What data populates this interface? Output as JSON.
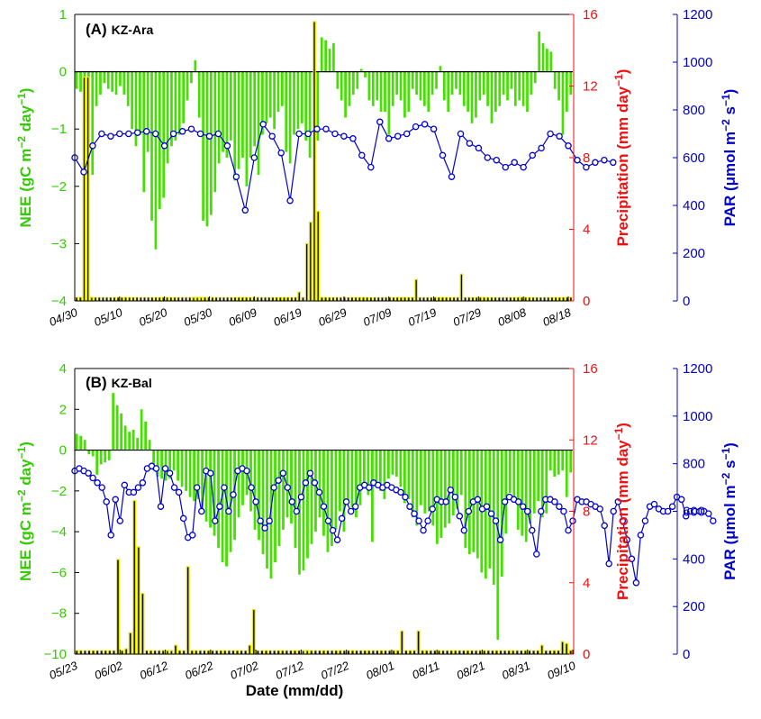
{
  "colors": {
    "nee": "#44e000",
    "precip_fill": "#111111",
    "precip_edge": "#e8e800",
    "par": "#0000cc",
    "par_marker_fill": "#ffffff",
    "precip_axis": "#ee1111",
    "nee_axis": "#33cc00",
    "zero_line": "#000000"
  },
  "xlabel": "Date (mm/dd)",
  "chart_data": [
    {
      "type": "bar",
      "panel": "(A)",
      "site": "KZ-Ara",
      "start_date": "04/30",
      "date_ticks": [
        "04/30",
        "05/10",
        "05/20",
        "05/30",
        "06/09",
        "06/19",
        "06/29",
        "07/09",
        "07/19",
        "07/29",
        "08/08",
        "08/18"
      ],
      "left_axis": {
        "label": "NEE (gC m",
        "label_sup1": "−2",
        "label_mid": " day",
        "label_sup2": "−1",
        "label_end": ")",
        "ylim": [
          -4,
          1
        ],
        "ticks": [
          "−4",
          "−3",
          "−2",
          "−1",
          "0",
          "1"
        ]
      },
      "mid_axis": {
        "label": "Precipitation (mm day",
        "label_sup": "−1",
        "label_end": ")",
        "ylim": [
          0,
          16
        ],
        "ticks": [
          "0",
          "4",
          "8",
          "12",
          "16"
        ]
      },
      "right_axis": {
        "label": "PAR (μmol m",
        "label_sup1": "−2",
        "label_mid": " s",
        "label_sup2": "−1",
        "label_end": ")",
        "ylim": [
          0,
          1200
        ],
        "ticks": [
          "0",
          "200",
          "400",
          "600",
          "800",
          "1000",
          "1200"
        ]
      },
      "series": [
        {
          "name": "NEE",
          "kind": "bar",
          "values": [
            -0.3,
            -0.35,
            -0.9,
            -1.3,
            -1.8,
            -0.6,
            -0.4,
            -0.2,
            -0.3,
            -0.35,
            -0.4,
            -0.25,
            -0.4,
            -0.6,
            -1.0,
            -1.3,
            -1.1,
            -2.1,
            -1.4,
            -2.6,
            -3.1,
            -2.4,
            -2.2,
            -1.6,
            -1.3,
            -1.2,
            -1.1,
            -0.9,
            -0.5,
            -0.2,
            0.2,
            -0.8,
            -2.6,
            -2.7,
            -2.5,
            -2.1,
            -1.6,
            -1.4,
            -1.5,
            -1.2,
            -1.9,
            -1.7,
            -1.5,
            -2.0,
            -1.5,
            -1.3,
            -1.8,
            -1.1,
            -0.9,
            -0.8,
            -1.0,
            -0.7,
            -0.6,
            -1.4,
            -1.6,
            -1.1,
            -1.0,
            -0.9,
            -1.2,
            -1.5,
            -0.2,
            -1.2,
            0.6,
            0.55,
            0.4,
            0.5,
            -0.3,
            -0.5,
            -0.8,
            -0.6,
            -0.4,
            -0.3,
            0.05,
            -0.1,
            -0.5,
            -0.6,
            -0.5,
            -0.7,
            -0.7,
            -1.1,
            -0.6,
            -0.4,
            -0.5,
            -0.8,
            -0.7,
            -0.3,
            -0.4,
            -0.5,
            -0.6,
            -0.7,
            -0.4,
            -0.3,
            0.1,
            -0.5,
            -0.7,
            -0.4,
            -0.3,
            -0.4,
            -0.6,
            -0.7,
            -0.9,
            -0.8,
            -0.5,
            -0.4,
            -0.6,
            -0.9,
            -0.7,
            -0.6,
            -0.4,
            -0.5,
            -0.3,
            -0.6,
            -0.5,
            -0.6,
            -0.7,
            -0.4,
            -0.2,
            0.7,
            0.5,
            0.4,
            0.35,
            -0.3,
            -0.5,
            -1.1,
            -0.7,
            -0.4
          ]
        },
        {
          "name": "Precipitation",
          "kind": "bar",
          "values": [
            0,
            0,
            12.5,
            12.5,
            0.1,
            0,
            0,
            0,
            0,
            0,
            0,
            0,
            0,
            0,
            0,
            0,
            0,
            0,
            0,
            0,
            0,
            0,
            0,
            0,
            0,
            0,
            0,
            0,
            0,
            0,
            0,
            0.1,
            0.1,
            0.1,
            0,
            0,
            0,
            0,
            0,
            0,
            0,
            0,
            0,
            0,
            0,
            0,
            0,
            0,
            0,
            0,
            0,
            0,
            0,
            0,
            0,
            0,
            0,
            0,
            0,
            0.5,
            0,
            3.2,
            4.4,
            15.6,
            5.0,
            0,
            0,
            0,
            0,
            0,
            0,
            0,
            0,
            0,
            0,
            0,
            0,
            0,
            0,
            0,
            0,
            0,
            0,
            0,
            0,
            0,
            0,
            0,
            0,
            0,
            1.2,
            0,
            0,
            0,
            0,
            0,
            0,
            0,
            0,
            0,
            0,
            0,
            1.5,
            0,
            0,
            0,
            0,
            0,
            0,
            0,
            0,
            0,
            0,
            0,
            0,
            0,
            0,
            0,
            0,
            0,
            0,
            0,
            0,
            0,
            0,
            0,
            0,
            0,
            0,
            0,
            0,
            0
          ]
        },
        {
          "name": "PAR",
          "kind": "line",
          "day_offsets": [
            0,
            2,
            4,
            6,
            8,
            10,
            12,
            14,
            16,
            18,
            20,
            22,
            24,
            26,
            28,
            30,
            32,
            34,
            36,
            38,
            40,
            42,
            44,
            46,
            48,
            50,
            52,
            54,
            56,
            58,
            60,
            62,
            64,
            66,
            68,
            70,
            72,
            74,
            76,
            78,
            80,
            82,
            84,
            86,
            88,
            90,
            92,
            94,
            96,
            98,
            100,
            102,
            104,
            106,
            108,
            110,
            112,
            114,
            116,
            118,
            120
          ],
          "values": [
            600,
            540,
            650,
            700,
            690,
            700,
            700,
            705,
            710,
            700,
            650,
            700,
            710,
            720,
            700,
            690,
            700,
            650,
            520,
            380,
            600,
            740,
            690,
            620,
            420,
            700,
            700,
            720,
            720,
            700,
            690,
            680,
            610,
            560,
            750,
            680,
            690,
            700,
            730,
            740,
            720,
            610,
            520,
            700,
            660,
            640,
            600,
            590,
            560,
            580,
            560,
            610,
            640,
            700,
            690,
            650,
            590,
            560,
            580,
            590,
            580
          ]
        }
      ]
    },
    {
      "type": "bar",
      "panel": "(B)",
      "site": "KZ-Bal",
      "start_date": "05/23",
      "date_ticks": [
        "05/23",
        "06/02",
        "06/12",
        "06/22",
        "07/02",
        "07/12",
        "07/22",
        "08/01",
        "08/11",
        "08/21",
        "08/31",
        "09/10"
      ],
      "left_axis": {
        "label": "NEE (gC m",
        "label_sup1": "−2",
        "label_mid": " day",
        "label_sup2": "−1",
        "label_end": ")",
        "ylim": [
          -10,
          4
        ],
        "ticks": [
          "−10",
          "−8",
          "−6",
          "−4",
          "−2",
          "0",
          "2",
          "4"
        ]
      },
      "mid_axis": {
        "label": "Precipitation (mm day",
        "label_sup": "−1",
        "label_end": ")",
        "ylim": [
          0,
          16
        ],
        "ticks": [
          "0",
          "4",
          "8",
          "12",
          "16"
        ]
      },
      "right_axis": {
        "label": "PAR (μmol m",
        "label_sup1": "−2",
        "label_mid": " s",
        "label_sup2": "−1",
        "label_end": ")",
        "ylim": [
          0,
          1200
        ],
        "ticks": [
          "0",
          "200",
          "400",
          "600",
          "800",
          "1000",
          "1200"
        ]
      },
      "series": [
        {
          "name": "NEE",
          "kind": "bar",
          "values": [
            0.8,
            0.7,
            0.5,
            -0.2,
            -0.3,
            -1.2,
            -0.7,
            -0.6,
            -0.5,
            2.8,
            2.2,
            1.8,
            1.2,
            0.9,
            1.0,
            0.6,
            2.0,
            1.4,
            0.5,
            -1.0,
            -1.3,
            -1.4,
            -1.5,
            -1.4,
            -1.0,
            -1.5,
            -1.8,
            -2.0,
            -2.3,
            -2.5,
            -2.4,
            -3.1,
            -3.5,
            -3.8,
            -4.2,
            -4.8,
            -5.5,
            -5.7,
            -5.0,
            -4.4,
            -3.3,
            -2.7,
            -2.2,
            -3.0,
            -3.9,
            -4.4,
            -5.1,
            -5.8,
            -6.3,
            -5.5,
            -4.7,
            -3.9,
            -3.3,
            -3.6,
            -4.8,
            -6.1,
            -5.9,
            -5.3,
            -4.6,
            -4.0,
            -3.3,
            -4.2,
            -5.0,
            -4.7,
            -3.9,
            -3.0,
            -4.0,
            -2.5,
            -2.8,
            -3.3,
            -2.7,
            -1.9,
            -2.2,
            -4.5,
            -1.8,
            -2.0,
            -2.4,
            -1.4,
            -1.2,
            -1.3,
            -1.8,
            -2.6,
            -2.4,
            -3.3,
            -3.7,
            -2.7,
            -3.1,
            -3.0,
            -3.7,
            -4.6,
            -4.3,
            -3.8,
            -3.6,
            -3.2,
            -2.9,
            -2.2,
            -4.8,
            -5.1,
            -5.0,
            -5.3,
            -6.0,
            -6.3,
            -5.8,
            -6.6,
            -9.3,
            -6.2,
            -4.1,
            -2.1,
            -2.3,
            -3.9,
            -4.2,
            -4.5,
            -3.6,
            -3.1,
            -2.5,
            -3.3,
            -3.1,
            -1.0,
            -1.3,
            -1.2,
            -1.0,
            -2.3,
            -1.1
          ]
        },
        {
          "name": "Precipitation",
          "kind": "bar",
          "values": [
            0,
            0,
            0,
            0,
            0,
            0,
            0,
            0,
            0,
            0,
            5.3,
            0,
            0.3,
            1.2,
            8.6,
            6.0,
            3.4,
            0,
            0,
            0,
            0,
            0,
            0.1,
            0.2,
            0.5,
            0,
            0,
            4.9,
            0,
            0,
            0,
            0,
            0,
            0,
            0,
            0,
            0,
            0,
            0,
            0,
            0,
            0,
            0.5,
            2.5,
            0,
            0,
            0,
            0,
            0,
            0,
            0,
            0,
            0,
            0,
            0,
            0.1,
            0.1,
            0,
            0,
            0,
            0,
            0,
            0,
            0,
            0,
            0,
            0,
            0,
            0,
            0,
            0,
            0,
            0,
            0,
            0,
            0,
            0,
            0,
            0,
            1.3,
            0,
            0,
            0,
            1.3,
            0,
            0,
            0,
            0,
            0,
            0,
            0,
            0,
            0,
            0,
            0,
            0,
            0,
            0,
            0,
            0,
            0,
            0,
            0,
            0,
            0,
            0,
            0,
            0,
            0,
            0,
            0,
            0,
            0,
            0.5,
            0,
            0,
            0,
            0,
            0.7,
            0.6,
            0
          ]
        },
        {
          "name": "PAR",
          "kind": "line",
          "day_offsets": [
            0,
            1,
            2,
            3,
            4,
            5,
            6,
            7,
            8,
            9,
            10,
            11,
            12,
            13,
            14,
            15,
            16,
            17,
            18,
            19,
            20,
            21,
            22,
            23,
            24,
            25,
            26,
            27,
            28,
            29,
            30,
            31,
            32,
            33,
            34,
            35,
            36,
            37,
            38,
            39,
            40,
            41,
            42,
            43,
            44,
            45,
            46,
            47,
            48,
            49,
            50,
            51,
            52,
            53,
            54,
            55,
            56,
            57,
            58,
            59,
            60,
            61,
            62,
            63,
            64,
            65,
            66,
            67,
            68,
            69,
            70,
            71,
            72,
            73,
            74,
            75,
            76,
            77,
            78,
            79,
            80,
            81,
            82,
            83,
            84,
            85,
            86,
            87,
            88,
            89,
            90,
            91,
            92,
            93,
            94,
            95,
            96,
            97,
            98,
            99,
            100,
            101,
            102,
            103,
            104,
            105,
            106,
            107,
            108,
            109,
            110,
            111,
            112,
            113,
            114,
            115,
            116,
            117,
            118,
            119,
            120,
            121,
            122,
            123,
            124,
            125,
            126,
            127,
            128,
            129,
            130,
            131,
            132,
            133,
            134,
            135,
            136,
            137,
            138,
            139,
            140,
            141
          ],
          "values": [
            770,
            780,
            770,
            760,
            740,
            720,
            700,
            640,
            500,
            650,
            560,
            710,
            680,
            680,
            700,
            720,
            780,
            790,
            780,
            620,
            780,
            760,
            700,
            680,
            570,
            490,
            500,
            700,
            600,
            770,
            760,
            560,
            620,
            700,
            600,
            670,
            770,
            780,
            770,
            700,
            640,
            560,
            530,
            560,
            700,
            730,
            760,
            700,
            640,
            600,
            660,
            720,
            760,
            720,
            680,
            620,
            560,
            520,
            480,
            570,
            640,
            600,
            620,
            700,
            710,
            700,
            720,
            710,
            700,
            710,
            700,
            690,
            680,
            660,
            620,
            590,
            560,
            520,
            560,
            610,
            650,
            640,
            640,
            690,
            660,
            580,
            520,
            600,
            640,
            650,
            610,
            620,
            590,
            560,
            480,
            640,
            660,
            650,
            640,
            620,
            600,
            520,
            420,
            600,
            650,
            650,
            640,
            620,
            600,
            520,
            560,
            650,
            640,
            640,
            630,
            620,
            610,
            540,
            380,
            600,
            640,
            560,
            480,
            400,
            300,
            500,
            560,
            620,
            630,
            610,
            600,
            600,
            620,
            660,
            650,
            580,
            600,
            600,
            600,
            600,
            590,
            560
          ]
        }
      ]
    }
  ]
}
